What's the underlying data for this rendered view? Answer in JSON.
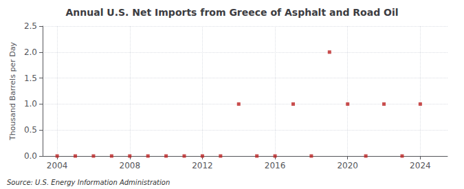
{
  "chart_data": {
    "type": "scatter",
    "title": "Annual U.S. Net Imports from Greece of Asphalt and Road Oil",
    "ylabel": "Thousand Barrels per Day",
    "source": "Source: U.S. Energy Information Administration",
    "x": [
      2004,
      2005,
      2006,
      2007,
      2008,
      2009,
      2010,
      2011,
      2012,
      2013,
      2014,
      2015,
      2016,
      2017,
      2018,
      2019,
      2020,
      2021,
      2022,
      2023,
      2024
    ],
    "values": [
      0.0,
      0.0,
      0.0,
      0.0,
      0.0,
      0.0,
      0.0,
      0.0,
      0.0,
      0.0,
      1.0,
      0.0,
      0.0,
      1.0,
      0.0,
      2.0,
      1.0,
      0.0,
      1.0,
      0.0,
      1.0
    ],
    "color": "#bb2222",
    "marker": "square",
    "xlim": [
      2003.2,
      2025.5
    ],
    "ylim": [
      0.0,
      2.5
    ],
    "xticks": [
      2004,
      2008,
      2012,
      2016,
      2020,
      2024
    ],
    "yticks": [
      {
        "value": 0,
        "label": "0.0"
      },
      0.5,
      {
        "value": 1,
        "label": "1.0"
      },
      1.5,
      {
        "value": 2,
        "label": "2.0"
      },
      2.5
    ],
    "grid": true
  }
}
